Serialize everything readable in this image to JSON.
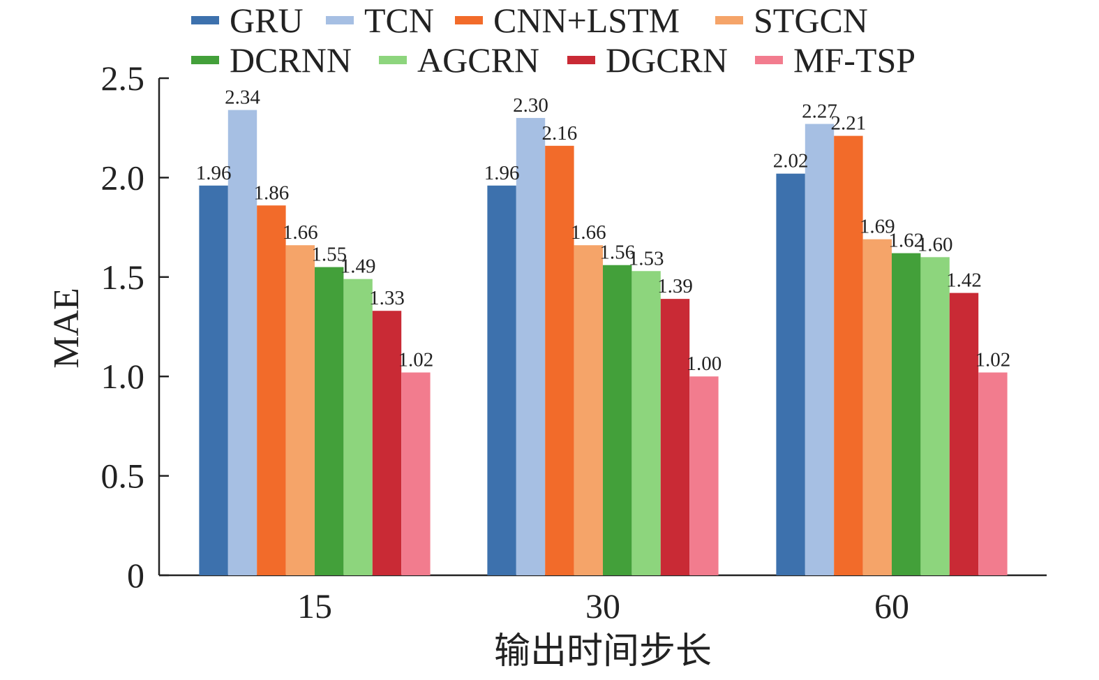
{
  "chart_data": {
    "type": "bar",
    "categories": [
      "15",
      "30",
      "60"
    ],
    "xlabel": "输出时间步长",
    "ylabel": "MAE",
    "ylim": [
      0,
      2.5
    ],
    "yticks": [
      {
        "value": 0,
        "label": "0"
      },
      {
        "value": 0.5,
        "label": "0.5"
      },
      {
        "value": 1.0,
        "label": "1.0"
      },
      {
        "value": 1.5,
        "label": "1.5"
      },
      {
        "value": 2.0,
        "label": "2.0"
      },
      {
        "value": 2.5,
        "label": "2.5"
      }
    ],
    "grid": false,
    "legend_position": "top",
    "series": [
      {
        "name": "GRU",
        "color": "#3d71ad",
        "values": [
          1.96,
          1.96,
          2.02
        ],
        "labels": [
          "1.96",
          "1.96",
          "2.02"
        ]
      },
      {
        "name": "TCN",
        "color": "#a6bfe3",
        "values": [
          2.34,
          2.3,
          2.27
        ],
        "labels": [
          "2.34",
          "2.30",
          "2.27"
        ]
      },
      {
        "name": "CNN+LSTM",
        "color": "#f26b2a",
        "values": [
          1.86,
          2.16,
          2.21
        ],
        "labels": [
          "1.86",
          "2.16",
          "2.21"
        ]
      },
      {
        "name": "STGCN",
        "color": "#f5a469",
        "values": [
          1.66,
          1.66,
          1.69
        ],
        "labels": [
          "1.66",
          "1.66",
          "1.69"
        ]
      },
      {
        "name": "DCRNN",
        "color": "#43a03a",
        "values": [
          1.55,
          1.56,
          1.62
        ],
        "labels": [
          "1.55",
          "1.56",
          "1.62"
        ]
      },
      {
        "name": "AGCRN",
        "color": "#8dd57d",
        "values": [
          1.49,
          1.53,
          1.6
        ],
        "labels": [
          "1.49",
          "1.53",
          "1.60"
        ]
      },
      {
        "name": "DGCRN",
        "color": "#c92a35",
        "values": [
          1.33,
          1.39,
          1.42
        ],
        "labels": [
          "1.33",
          "1.39",
          "1.42"
        ]
      },
      {
        "name": "MF-TSP",
        "color": "#f27c8e",
        "values": [
          1.02,
          1.0,
          1.02
        ],
        "labels": [
          "1.02",
          "1.00",
          "1.02"
        ]
      }
    ]
  }
}
